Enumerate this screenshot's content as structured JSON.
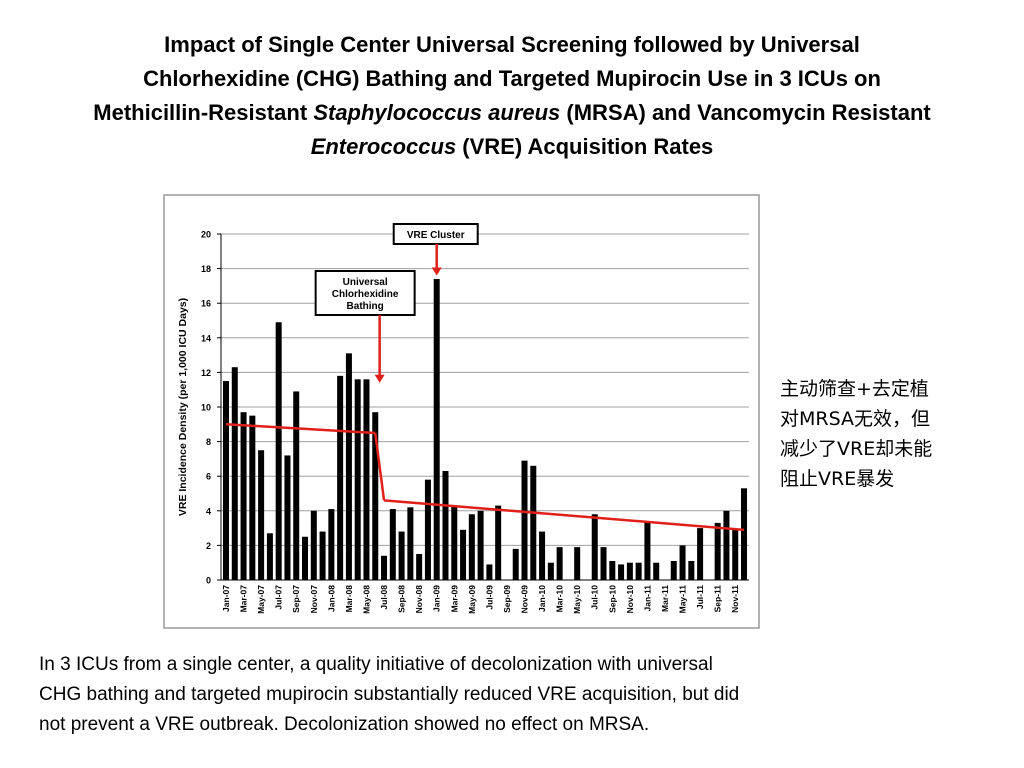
{
  "slide": {
    "title": [
      [
        {
          "text": "Impact of Single Center Universal Screening followed by Universal",
          "italic": false
        }
      ],
      [
        {
          "text": "Chlorhexidine (CHG) Bathing and Targeted Mupirocin Use in 3 ICUs on",
          "italic": false
        }
      ],
      [
        {
          "text": "Methicillin-Resistant ",
          "italic": false
        },
        {
          "text": "Staphylococcus aureus",
          "italic": true
        },
        {
          "text": " (MRSA) and Vancomycin Resistant",
          "italic": false
        }
      ],
      [
        {
          "text": "Enterococcus",
          "italic": true
        },
        {
          "text": " (VRE) Acquisition Rates",
          "italic": false
        }
      ]
    ],
    "note": [
      "主动筛查+去定植",
      "对MRSA无效，但",
      "减少了VRE却未能",
      "阻止VRE暴发"
    ],
    "caption": [
      "In 3 ICUs from a single center, a quality initiative of decolonization with universal",
      "CHG bathing and targeted mupirocin substantially reduced VRE acquisition, but did",
      "not prevent a VRE outbreak. Decolonization showed no effect on MRSA."
    ]
  },
  "chart_data": {
    "type": "bar",
    "y_label": "VRE Incidence Density (per 1,000 ICU Days)",
    "categories": [
      "Jan-07",
      null,
      "Mar-07",
      null,
      "May-07",
      null,
      "Jul-07",
      null,
      "Sep-07",
      null,
      "Nov-07",
      null,
      "Jan-08",
      null,
      "Mar-08",
      null,
      "May-08",
      null,
      "Jul-08",
      null,
      "Sep-08",
      null,
      "Nov-08",
      null,
      "Jan-09",
      null,
      "Mar-09",
      null,
      "May-09",
      null,
      "Jul-09",
      null,
      "Sep-09",
      null,
      "Nov-09",
      null,
      "Jan-10",
      null,
      "Mar-10",
      null,
      "May-10",
      null,
      "Jul-10",
      null,
      "Sep-10",
      null,
      "Nov-10",
      null,
      "Jan-11",
      null,
      "Mar-11",
      null,
      "May-11",
      null,
      "Jul-11",
      null,
      "Sep-11",
      null,
      "Nov-11",
      null
    ],
    "values": [
      11.5,
      12.3,
      9.7,
      9.5,
      7.5,
      2.7,
      14.9,
      7.2,
      10.9,
      2.5,
      4.0,
      2.8,
      4.1,
      11.8,
      13.1,
      11.6,
      11.6,
      9.7,
      1.4,
      4.1,
      2.8,
      4.2,
      1.5,
      5.8,
      17.4,
      6.3,
      4.3,
      2.9,
      3.8,
      4.0,
      0.9,
      4.3,
      0,
      1.8,
      6.9,
      6.6,
      2.8,
      1.0,
      1.9,
      0,
      1.9,
      0,
      3.8,
      1.9,
      1.1,
      0.9,
      1.0,
      1.0,
      3.4,
      1.0,
      0,
      1.1,
      2.0,
      1.1,
      3.0,
      0,
      3.3,
      4.0,
      2.9,
      5.3
    ],
    "color": "#000000",
    "trend": {
      "color": "#e0201b",
      "pieces": [
        {
          "x": [
            0,
            17
          ],
          "values": [
            9.0,
            8.5
          ]
        },
        {
          "x": [
            18,
            59
          ],
          "values": [
            4.6,
            2.9
          ]
        }
      ]
    },
    "annotations": [
      {
        "lines": [
          "VRE Cluster"
        ],
        "x": 24,
        "y": 17.6
      },
      {
        "lines": [
          "Universal",
          "Chlorhexidine",
          "Bathing"
        ],
        "x": 17.5,
        "y": 11.4
      }
    ],
    "arrow_color": "#e0201b",
    "ylim": [
      0,
      20
    ],
    "yticks": [
      0,
      2,
      4,
      6,
      8,
      10,
      12,
      14,
      16,
      18,
      20
    ],
    "grid": true
  }
}
